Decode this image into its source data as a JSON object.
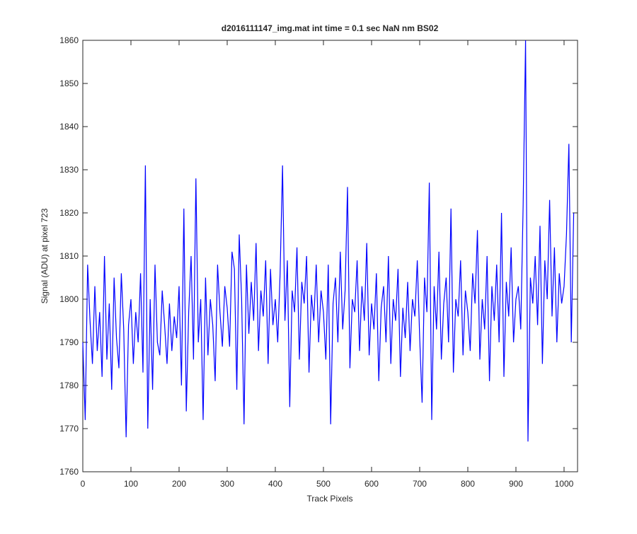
{
  "chart_data": {
    "type": "line",
    "title": "d2016111147_img.mat int time = 0.1 sec  NaN nm BS02",
    "x_label": "Track Pixels",
    "y_label": "Signal (ADU) at pixel 723",
    "xlim": [
      0,
      1028
    ],
    "ylim": [
      1760,
      1860
    ],
    "xticks": [
      0,
      100,
      200,
      300,
      400,
      500,
      600,
      700,
      800,
      900,
      1000
    ],
    "yticks": [
      1760,
      1770,
      1780,
      1790,
      1800,
      1810,
      1820,
      1830,
      1840,
      1850,
      1860
    ],
    "grid": false,
    "x": [
      0,
      5,
      10,
      15,
      20,
      25,
      30,
      35,
      40,
      45,
      50,
      55,
      60,
      65,
      70,
      75,
      80,
      85,
      90,
      95,
      100,
      105,
      110,
      115,
      120,
      125,
      130,
      135,
      140,
      145,
      150,
      155,
      160,
      165,
      170,
      175,
      180,
      185,
      190,
      195,
      200,
      205,
      210,
      215,
      220,
      225,
      230,
      235,
      240,
      245,
      250,
      255,
      260,
      265,
      270,
      275,
      280,
      285,
      290,
      295,
      300,
      305,
      310,
      315,
      320,
      325,
      330,
      335,
      340,
      345,
      350,
      355,
      360,
      365,
      370,
      375,
      380,
      385,
      390,
      395,
      400,
      405,
      410,
      415,
      420,
      425,
      430,
      435,
      440,
      445,
      450,
      455,
      460,
      465,
      470,
      475,
      480,
      485,
      490,
      495,
      500,
      505,
      510,
      515,
      520,
      525,
      530,
      535,
      540,
      545,
      550,
      555,
      560,
      565,
      570,
      575,
      580,
      585,
      590,
      595,
      600,
      605,
      610,
      615,
      620,
      625,
      630,
      635,
      640,
      645,
      650,
      655,
      660,
      665,
      670,
      675,
      680,
      685,
      690,
      695,
      700,
      705,
      710,
      715,
      720,
      725,
      730,
      735,
      740,
      745,
      750,
      755,
      760,
      765,
      770,
      775,
      780,
      785,
      790,
      795,
      800,
      805,
      810,
      815,
      820,
      825,
      830,
      835,
      840,
      845,
      850,
      855,
      860,
      865,
      870,
      875,
      880,
      885,
      890,
      895,
      900,
      905,
      910,
      915,
      920,
      925,
      930,
      935,
      940,
      945,
      950,
      955,
      960,
      965,
      970,
      975,
      980,
      985,
      990,
      995,
      1000,
      1005,
      1010,
      1015,
      1020
    ],
    "series": [
      {
        "color": "#0000ff",
        "values": [
          1790,
          1772,
          1808,
          1795,
          1785,
          1803,
          1788,
          1797,
          1782,
          1810,
          1786,
          1799,
          1779,
          1805,
          1791,
          1784,
          1806,
          1793,
          1768,
          1794,
          1800,
          1785,
          1797,
          1790,
          1806,
          1783,
          1831,
          1770,
          1800,
          1779,
          1808,
          1790,
          1787,
          1802,
          1794,
          1785,
          1799,
          1788,
          1796,
          1791,
          1803,
          1780,
          1821,
          1774,
          1797,
          1810,
          1786,
          1828,
          1790,
          1800,
          1772,
          1805,
          1787,
          1800,
          1794,
          1781,
          1808,
          1797,
          1789,
          1803,
          1798,
          1789,
          1811,
          1807,
          1779,
          1815,
          1800,
          1771,
          1808,
          1792,
          1804,
          1795,
          1813,
          1788,
          1802,
          1796,
          1809,
          1785,
          1807,
          1794,
          1800,
          1790,
          1806,
          1831,
          1795,
          1809,
          1775,
          1802,
          1797,
          1812,
          1786,
          1804,
          1799,
          1810,
          1783,
          1801,
          1795,
          1808,
          1790,
          1802,
          1797,
          1786,
          1808,
          1771,
          1799,
          1805,
          1790,
          1811,
          1793,
          1802,
          1826,
          1784,
          1800,
          1797,
          1809,
          1788,
          1803,
          1795,
          1813,
          1787,
          1799,
          1793,
          1806,
          1781,
          1798,
          1803,
          1790,
          1810,
          1785,
          1800,
          1795,
          1807,
          1782,
          1798,
          1791,
          1804,
          1788,
          1800,
          1796,
          1809,
          1791,
          1776,
          1805,
          1797,
          1827,
          1772,
          1803,
          1793,
          1811,
          1786,
          1799,
          1805,
          1790,
          1821,
          1783,
          1800,
          1796,
          1809,
          1787,
          1802,
          1797,
          1788,
          1806,
          1799,
          1816,
          1786,
          1800,
          1793,
          1810,
          1781,
          1803,
          1795,
          1808,
          1790,
          1820,
          1782,
          1804,
          1796,
          1812,
          1790,
          1800,
          1803,
          1793,
          1822,
          1860,
          1767,
          1805,
          1799,
          1810,
          1794,
          1817,
          1785,
          1809,
          1800,
          1823,
          1796,
          1812,
          1790,
          1806,
          1799,
          1803,
          1815,
          1836,
          1790,
          1820
        ]
      }
    ]
  }
}
